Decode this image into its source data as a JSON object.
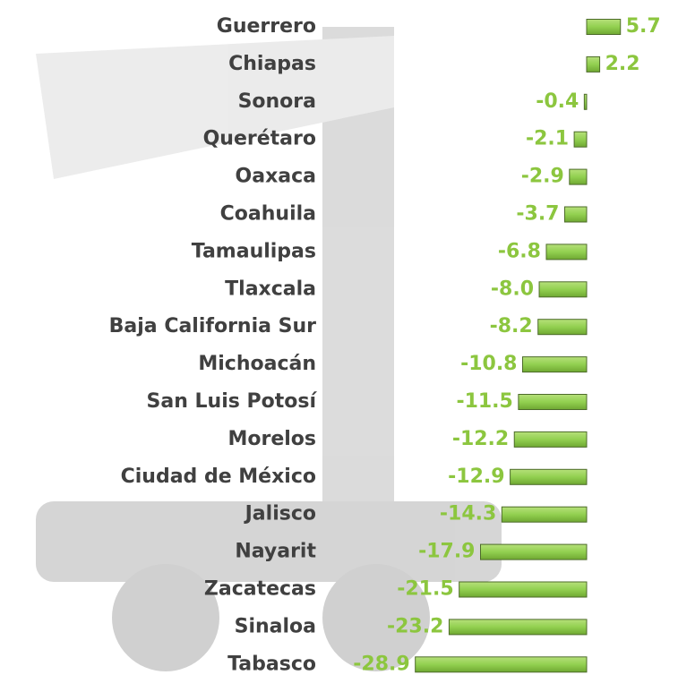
{
  "chart_data": {
    "type": "bar",
    "orientation": "horizontal",
    "categories": [
      "Guerrero",
      "Chiapas",
      "Sonora",
      "Querétaro",
      "Oaxaca",
      "Coahuila",
      "Tamaulipas",
      "Tlaxcala",
      "Baja California Sur",
      "Michoacán",
      "San Luis Potosí",
      "Morelos",
      "Ciudad de México",
      "Jalisco",
      "Nayarit",
      "Zacatecas",
      "Sinaloa",
      "Tabasco"
    ],
    "values": [
      5.7,
      2.2,
      -0.4,
      -2.1,
      -2.9,
      -3.7,
      -6.8,
      -8.0,
      -8.2,
      -10.8,
      -11.5,
      -12.2,
      -12.9,
      -14.3,
      -17.9,
      -21.5,
      -23.2,
      -28.9
    ],
    "value_labels": [
      "5.7",
      "2.2",
      "-0.4",
      "-2.1",
      "-2.9",
      "-3.7",
      "-6.8",
      "-8.0",
      "-8.2",
      "-10.8",
      "-11.5",
      "-12.2",
      "-12.9",
      "-14.3",
      "-17.9",
      "-21.5",
      "-23.2",
      "-28.9"
    ],
    "color": "#92d050"
  }
}
